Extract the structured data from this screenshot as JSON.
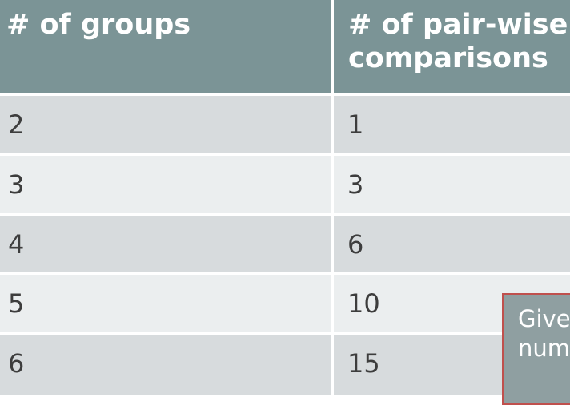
{
  "table": {
    "headers": [
      "# of groups",
      "# of pair-wise",
      "comparisons"
    ],
    "rows": [
      [
        "2",
        "1"
      ],
      [
        "3",
        "3"
      ],
      [
        "4",
        "6"
      ],
      [
        "5",
        "10"
      ],
      [
        "6",
        "15"
      ]
    ]
  },
  "callout": {
    "line1": "Give",
    "line2": "num"
  },
  "colors": {
    "header_bg": "#7b9496",
    "row_dark": "#d7dbdd",
    "row_light": "#ebeeef",
    "callout_border": "#c0504d"
  }
}
